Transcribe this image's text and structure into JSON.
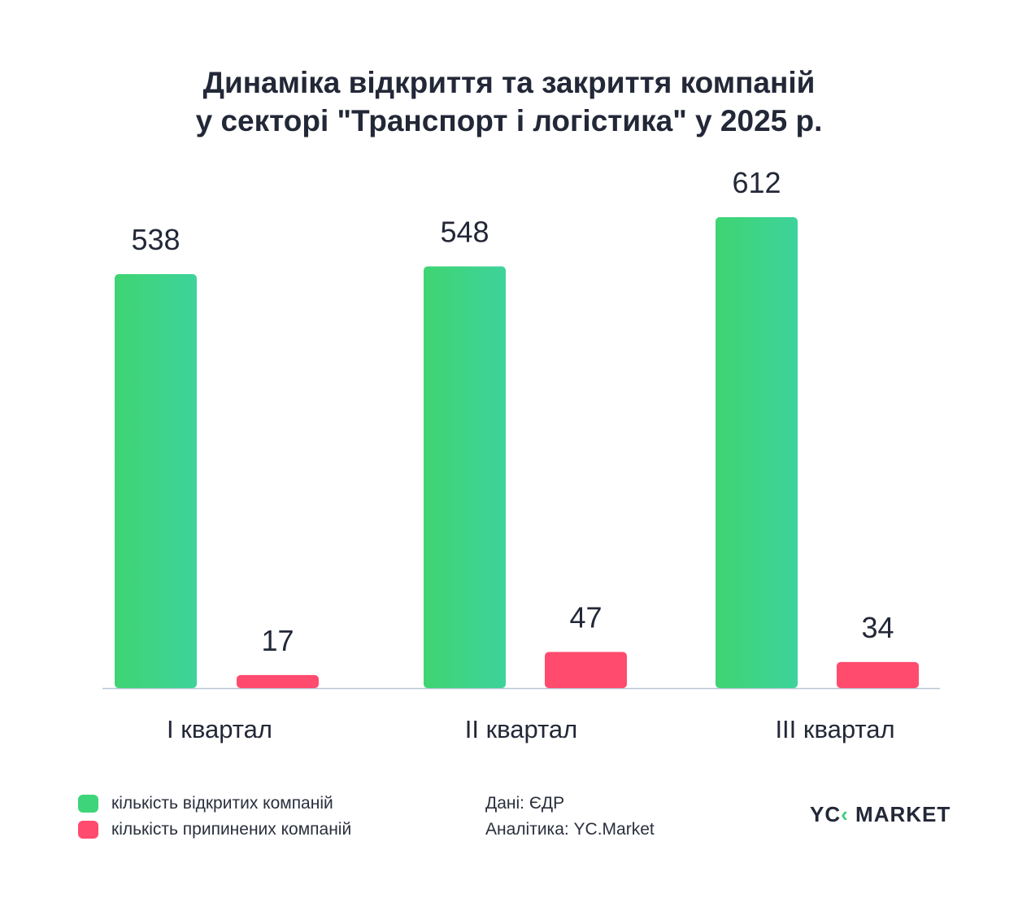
{
  "chart_data": {
    "type": "bar",
    "title": [
      "Динаміка відкриття та закриття компаній",
      "у секторі \"Транспорт і логістика\" у 2025 р."
    ],
    "categories": [
      "I квартал",
      "II квартал",
      "III квартал"
    ],
    "series": [
      {
        "name": "кількість відкритих компаній",
        "values": [
          538,
          548,
          612
        ],
        "color": "#3ed47a"
      },
      {
        "name": "кількість припинених компаній",
        "values": [
          17,
          47,
          34
        ],
        "color": "#ff4b6e"
      }
    ],
    "ylim": [
      0,
      612
    ],
    "grid": false,
    "legend": "bottom-left"
  },
  "source": {
    "data": "Дані: ЄДР",
    "analytics": "Аналітика: YC.Market"
  },
  "logo": {
    "left": "YC",
    "right": "MARKET"
  }
}
